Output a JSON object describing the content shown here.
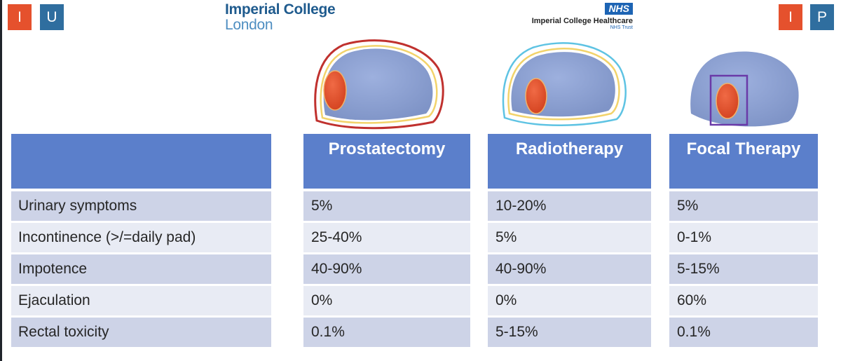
{
  "header": {
    "left_badges": [
      "I",
      "U"
    ],
    "right_badges": [
      "I",
      "P"
    ],
    "imperial_logo": {
      "line1": "Imperial College",
      "line2": "London"
    },
    "nhs_logo": {
      "mark": "NHS",
      "name": "Imperial College Healthcare",
      "trust": "NHS Trust"
    }
  },
  "table": {
    "columns": [
      "Prostatectomy",
      "Radiotherapy",
      "Focal Therapy"
    ],
    "rows": [
      {
        "label": "Urinary symptoms",
        "values": [
          "5%",
          "10-20%",
          "5%"
        ]
      },
      {
        "label": "Incontinence (>/=daily pad)",
        "values": [
          "25-40%",
          "5%",
          "0-1%"
        ]
      },
      {
        "label": "Impotence",
        "values": [
          "40-90%",
          "40-90%",
          "5-15%"
        ]
      },
      {
        "label": "Ejaculation",
        "values": [
          "0%",
          "0%",
          "60%"
        ]
      },
      {
        "label": "Rectal toxicity",
        "values": [
          "0.1%",
          "5-15%",
          "0.1%"
        ]
      }
    ]
  },
  "colors": {
    "header_blue": "#5b7fcb",
    "row_dark": "#cdd3e7",
    "row_light": "#e8ebf4",
    "badge_red": "#e5512d",
    "badge_blue": "#2f6e9f",
    "prostate_blue": "#8ea2d2",
    "tumor_red": "#e3502c"
  },
  "icons": [
    "prostate-surgery-diagram-icon",
    "prostate-radiotherapy-diagram-icon",
    "prostate-focal-therapy-diagram-icon"
  ]
}
